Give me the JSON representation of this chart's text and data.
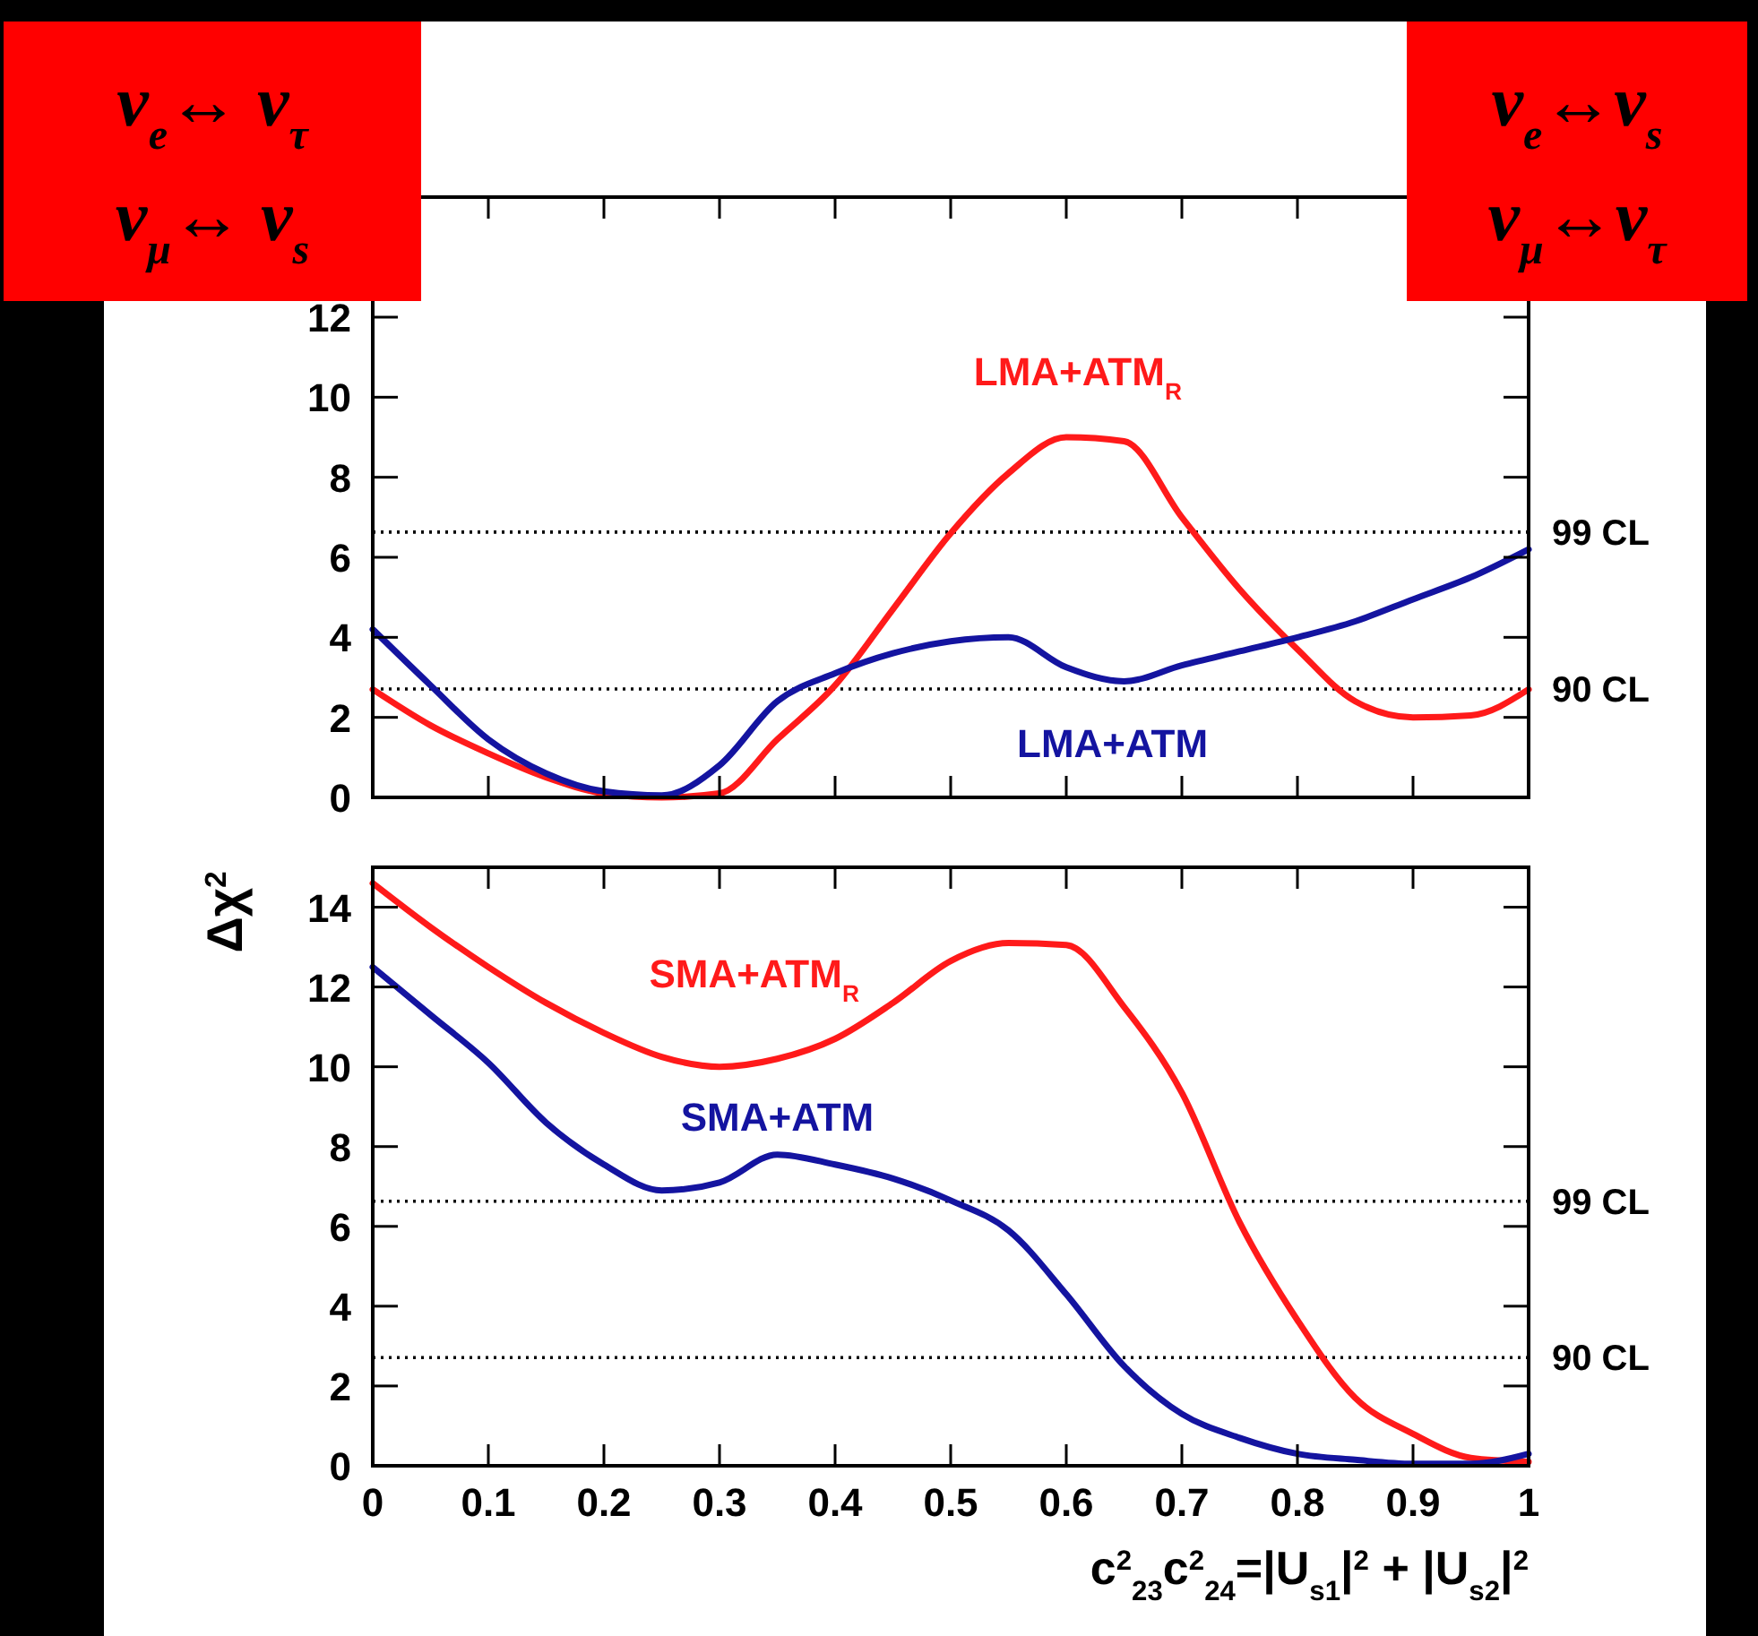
{
  "chart_data": [
    {
      "type": "line",
      "x": [
        0,
        0.05,
        0.1,
        0.15,
        0.2,
        0.25,
        0.3,
        0.35,
        0.4,
        0.45,
        0.5,
        0.55,
        0.6,
        0.65,
        0.7,
        0.75,
        0.8,
        0.85,
        0.9,
        0.95,
        1
      ],
      "series": [
        {
          "name": "LMA+ATM$_{R}$",
          "color": "#ff1a1a",
          "values": [
            2.7,
            1.8,
            1.1,
            0.5,
            0.1,
            0,
            0.1,
            1.45,
            2.8,
            4.7,
            6.6,
            8.1,
            9.0,
            8.9,
            7.0,
            5.2,
            3.7,
            2.4,
            2.0,
            2.05,
            2.7
          ]
        },
        {
          "name": "LMA+ATM",
          "color": "#1414a0",
          "values": [
            4.2,
            2.8,
            1.45,
            0.6,
            0.15,
            0.05,
            0.8,
            2.4,
            3.1,
            3.6,
            3.9,
            4.0,
            3.25,
            2.9,
            3.3,
            3.65,
            4.0,
            4.4,
            4.95,
            5.5,
            6.2
          ]
        }
      ],
      "xlim": [
        0,
        1
      ],
      "xticks": [
        0,
        0.1,
        0.2,
        0.3,
        0.4,
        0.5,
        0.6,
        0.7,
        0.8,
        0.9,
        1
      ],
      "ylim": [
        0,
        15
      ],
      "yticks": [
        0,
        2,
        4,
        6,
        8,
        10,
        12
      ],
      "tick_labels": "y",
      "ref_lines": [
        {
          "axis": "y",
          "value": 6.63,
          "label": "99 CL",
          "line_style": "dotted"
        },
        {
          "axis": "y",
          "value": 2.71,
          "label": "90 CL",
          "line_style": "dotted"
        }
      ],
      "annotations": [
        "ν$_{e}$↔ ν$_{τ}$",
        "ν$_{μ}$↔ ν$_{s}$",
        "ν$_{e}$↔ν$_{s}$",
        "ν$_{μ}$↔ν$_{τ}$"
      ]
    },
    {
      "type": "line",
      "x": [
        0,
        0.05,
        0.1,
        0.15,
        0.2,
        0.25,
        0.3,
        0.35,
        0.4,
        0.45,
        0.5,
        0.55,
        0.6,
        0.65,
        0.7,
        0.75,
        0.8,
        0.85,
        0.9,
        0.95,
        1
      ],
      "series": [
        {
          "name": "SMA+ATM$_{R}$",
          "color": "#ff1a1a",
          "values": [
            14.6,
            13.5,
            12.5,
            11.6,
            10.85,
            10.25,
            10.0,
            10.2,
            10.7,
            11.6,
            12.65,
            13.1,
            13.05,
            11.5,
            9.35,
            6.1,
            3.65,
            1.7,
            0.8,
            0.2,
            0.1
          ]
        },
        {
          "name": "SMA+ATM",
          "color": "#1414a0",
          "values": [
            12.5,
            11.3,
            10.1,
            8.6,
            7.55,
            6.9,
            7.1,
            7.8,
            7.55,
            7.2,
            6.65,
            5.9,
            4.3,
            2.5,
            1.3,
            0.7,
            0.3,
            0.15,
            0.05,
            0.05,
            0.3
          ]
        }
      ],
      "xlim": [
        0,
        1
      ],
      "xticks": [
        0,
        0.1,
        0.2,
        0.3,
        0.4,
        0.5,
        0.6,
        0.7,
        0.8,
        0.9,
        1
      ],
      "ylim": [
        0,
        15
      ],
      "yticks": [
        0,
        2,
        4,
        6,
        8,
        10,
        12,
        14
      ],
      "xlabel": "c$^{2}$$_{23}$c$^{2}$$_{24}$=|U$_{s1}$|$^{2}$ + |U$_{s2}$|$^{2}$",
      "ylabel": "Δχ$^{2}$",
      "ref_lines": [
        {
          "axis": "y",
          "value": 6.63,
          "label": "99 CL",
          "line_style": "dotted"
        },
        {
          "axis": "y",
          "value": 2.71,
          "label": "90 CL",
          "line_style": "dotted"
        }
      ]
    }
  ]
}
